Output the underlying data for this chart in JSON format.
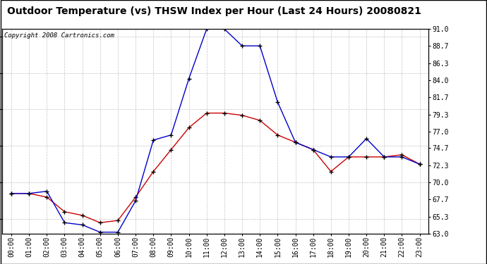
{
  "title": "Outdoor Temperature (vs) THSW Index per Hour (Last 24 Hours) 20080821",
  "copyright": "Copyright 2008 Cartronics.com",
  "hours": [
    "00:00",
    "01:00",
    "02:00",
    "03:00",
    "04:00",
    "05:00",
    "06:00",
    "07:00",
    "08:00",
    "09:00",
    "10:00",
    "11:00",
    "12:00",
    "13:00",
    "14:00",
    "15:00",
    "16:00",
    "17:00",
    "18:00",
    "19:00",
    "20:00",
    "21:00",
    "22:00",
    "23:00"
  ],
  "temp": [
    68.5,
    68.5,
    68.0,
    66.0,
    65.5,
    64.5,
    64.8,
    68.0,
    71.5,
    74.5,
    77.5,
    79.5,
    79.5,
    79.2,
    78.5,
    76.5,
    75.5,
    74.5,
    71.5,
    73.5,
    73.5,
    73.5,
    73.8,
    72.5
  ],
  "thsw": [
    68.5,
    68.5,
    68.8,
    64.5,
    64.2,
    63.2,
    63.2,
    67.5,
    75.8,
    76.5,
    84.2,
    91.0,
    91.0,
    88.7,
    88.7,
    81.0,
    75.5,
    74.5,
    73.5,
    73.5,
    76.0,
    73.5,
    73.5,
    72.5
  ],
  "temp_color": "#cc0000",
  "thsw_color": "#0000cc",
  "background_color": "#ffffff",
  "grid_color": "#bbbbbb",
  "ylim_min": 63.0,
  "ylim_max": 91.0,
  "yticks": [
    63.0,
    65.3,
    67.7,
    70.0,
    72.3,
    74.7,
    77.0,
    79.3,
    81.7,
    84.0,
    86.3,
    88.7,
    91.0
  ],
  "title_fontsize": 10,
  "copyright_fontsize": 6.5,
  "tick_fontsize": 7.0
}
